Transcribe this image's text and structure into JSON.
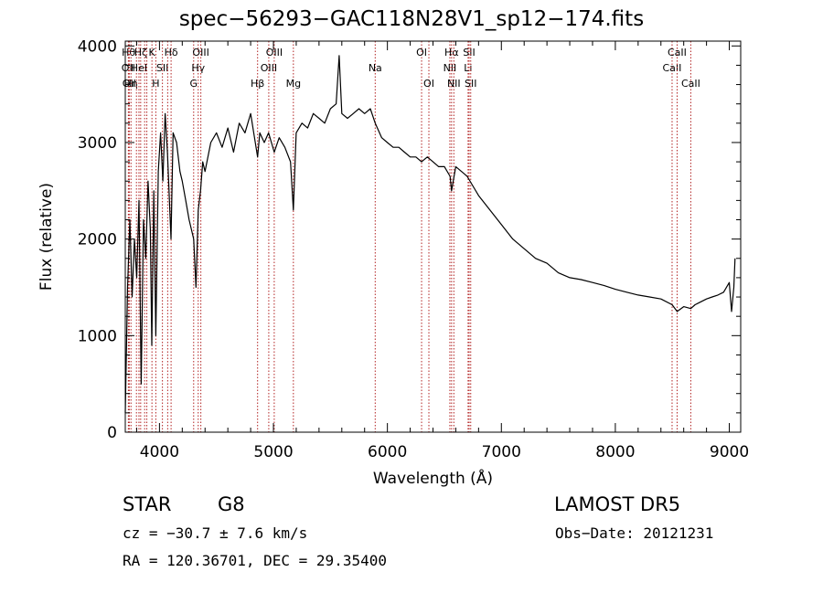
{
  "chart_data": {
    "type": "line",
    "title": "spec−56293−GAC118N28V1_sp12−174.fits",
    "xlabel": "Wavelength (Å)",
    "ylabel": "Flux (relative)",
    "xlim": [
      3700,
      9100
    ],
    "ylim": [
      0,
      4050
    ],
    "x_ticks": [
      4000,
      5000,
      6000,
      7000,
      8000,
      9000
    ],
    "y_ticks": [
      0,
      1000,
      2000,
      3000,
      4000
    ],
    "grid": false,
    "line_color": "#000000",
    "marker_color": "#b22222",
    "series": [
      {
        "x": [
          3700,
          3720,
          3740,
          3760,
          3780,
          3800,
          3820,
          3840,
          3860,
          3880,
          3900,
          3920,
          3933,
          3950,
          3968,
          3990,
          4010,
          4030,
          4050,
          4070,
          4101,
          4120,
          4150,
          4180,
          4200,
          4230,
          4260,
          4300,
          4320,
          4340,
          4360,
          4380,
          4400,
          4450,
          4500,
          4550,
          4600,
          4650,
          4700,
          4750,
          4800,
          4861,
          4880,
          4920,
          4957,
          5007,
          5050,
          5100,
          5150,
          5175,
          5200,
          5250,
          5300,
          5350,
          5400,
          5450,
          5500,
          5550,
          5577,
          5600,
          5650,
          5700,
          5750,
          5800,
          5850,
          5893,
          5950,
          6000,
          6050,
          6100,
          6150,
          6200,
          6250,
          6300,
          6350,
          6400,
          6450,
          6500,
          6550,
          6563,
          6600,
          6650,
          6700,
          6750,
          6800,
          6900,
          7000,
          7100,
          7200,
          7300,
          7400,
          7500,
          7600,
          7700,
          7800,
          7900,
          8000,
          8100,
          8200,
          8300,
          8400,
          8498,
          8542,
          8600,
          8662,
          8700,
          8750,
          8800,
          8850,
          8900,
          8950,
          9000,
          9020,
          9040,
          9050
        ],
        "y": [
          200,
          1500,
          2200,
          1400,
          2000,
          1600,
          2400,
          500,
          2200,
          1800,
          2600,
          2100,
          900,
          2500,
          1000,
          2700,
          3100,
          2600,
          3300,
          2900,
          2000,
          3100,
          3000,
          2700,
          2600,
          2400,
          2200,
          2000,
          1500,
          2300,
          2500,
          2800,
          2700,
          3000,
          3100,
          2950,
          3150,
          2900,
          3200,
          3100,
          3300,
          2850,
          3100,
          3000,
          3100,
          2900,
          3050,
          2950,
          2800,
          2300,
          3100,
          3200,
          3150,
          3300,
          3250,
          3200,
          3350,
          3400,
          3900,
          3300,
          3250,
          3300,
          3350,
          3300,
          3350,
          3200,
          3050,
          3000,
          2950,
          2950,
          2900,
          2850,
          2850,
          2800,
          2850,
          2800,
          2750,
          2750,
          2650,
          2500,
          2750,
          2700,
          2650,
          2550,
          2450,
          2300,
          2150,
          2000,
          1900,
          1800,
          1750,
          1650,
          1600,
          1580,
          1550,
          1520,
          1480,
          1450,
          1420,
          1400,
          1380,
          1320,
          1250,
          1300,
          1280,
          1320,
          1350,
          1380,
          1400,
          1420,
          1450,
          1550,
          1250,
          1500,
          1800
        ]
      }
    ],
    "line_markers": [
      {
        "w": 3729,
        "row": 0,
        "label": "Hθ"
      },
      {
        "w": 3727,
        "row": 1,
        "label": "OII"
      },
      {
        "w": 3735,
        "row": 2,
        "label": "OII"
      },
      {
        "w": 3750,
        "row": 2,
        "label": "Hη"
      },
      {
        "w": 3798,
        "row": 0,
        "label": ""
      },
      {
        "w": 3835,
        "row": 0,
        "label": "Hζ"
      },
      {
        "w": 3820,
        "row": 1,
        "label": "HeI"
      },
      {
        "w": 3870,
        "row": 0,
        "label": ""
      },
      {
        "w": 3889,
        "row": 0,
        "label": ""
      },
      {
        "w": 3934,
        "row": 0,
        "label": "K"
      },
      {
        "w": 3968,
        "row": 2,
        "label": "H"
      },
      {
        "w": 4026,
        "row": 1,
        "label": "SII"
      },
      {
        "w": 4072,
        "row": 1,
        "label": ""
      },
      {
        "w": 4102,
        "row": 0,
        "label": "Hδ"
      },
      {
        "w": 4300,
        "row": 2,
        "label": "G"
      },
      {
        "w": 4340,
        "row": 1,
        "label": "Hγ"
      },
      {
        "w": 4363,
        "row": 0,
        "label": "OIII"
      },
      {
        "w": 4861,
        "row": 2,
        "label": "Hβ"
      },
      {
        "w": 4959,
        "row": 1,
        "label": "OIII"
      },
      {
        "w": 5007,
        "row": 0,
        "label": "OIII"
      },
      {
        "w": 5175,
        "row": 2,
        "label": "Mg"
      },
      {
        "w": 5893,
        "row": 1,
        "label": "Na"
      },
      {
        "w": 6300,
        "row": 0,
        "label": "OI"
      },
      {
        "w": 6364,
        "row": 2,
        "label": "OI"
      },
      {
        "w": 6548,
        "row": 1,
        "label": "NII"
      },
      {
        "w": 6563,
        "row": 0,
        "label": "Hα"
      },
      {
        "w": 6583,
        "row": 2,
        "label": "NII"
      },
      {
        "w": 6708,
        "row": 1,
        "label": "Li"
      },
      {
        "w": 6717,
        "row": 0,
        "label": "SII"
      },
      {
        "w": 6731,
        "row": 2,
        "label": "SII"
      },
      {
        "w": 8498,
        "row": 1,
        "label": "CaII"
      },
      {
        "w": 8542,
        "row": 0,
        "label": "CaII"
      },
      {
        "w": 8662,
        "row": 2,
        "label": "CaII"
      }
    ]
  },
  "info": {
    "class": "STAR",
    "subclass": "G8",
    "survey": "LAMOST DR5",
    "cz": "cz = −30.7 ± 7.6 km/s",
    "obs_date": "Obs−Date: 20121231",
    "radec": "RA = 120.36701, DEC =  29.35400"
  }
}
